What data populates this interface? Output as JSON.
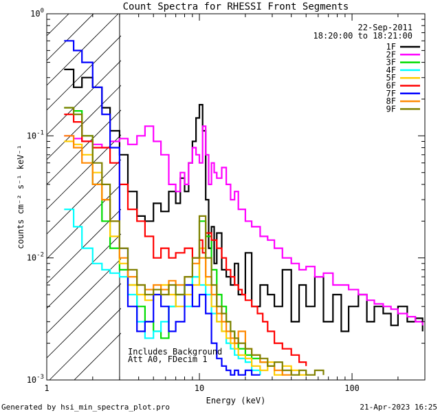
{
  "chart_data": {
    "type": "line",
    "title": "Count Spectra for RHESSI Front Segments",
    "xlabel": "Energy (keV)",
    "ylabel": "counts cm⁻² s⁻¹ keV⁻¹",
    "xscale": "log",
    "yscale": "log",
    "xlim": [
      1,
      300
    ],
    "ylim": [
      0.001,
      1
    ],
    "x_ticks": [
      {
        "value": 1,
        "label": "1"
      },
      {
        "value": 10,
        "label": "10"
      },
      {
        "value": 100,
        "label": "100"
      }
    ],
    "y_ticks": [
      {
        "value": 0.001,
        "base": "10",
        "exp": "-3"
      },
      {
        "value": 0.01,
        "base": "10",
        "exp": "-2"
      },
      {
        "value": 0.1,
        "base": "10",
        "exp": "-1"
      },
      {
        "value": 1,
        "base": "10",
        "exp": "0"
      }
    ],
    "date": "22-Sep-2011",
    "time_range": "18:20:00 to 18:21:00",
    "annotations": [
      "Includes Background",
      "Att A0, FDecim 1"
    ],
    "hatched_region_max_energy": 3,
    "legend_position": "top-right",
    "series": [
      {
        "name": "1F",
        "color": "#000000",
        "x": [
          1.3,
          1.5,
          1.7,
          2.0,
          2.3,
          2.6,
          3.0,
          3.4,
          3.9,
          4.4,
          5.0,
          5.6,
          6.3,
          7.0,
          7.5,
          8.0,
          8.5,
          9.0,
          9.5,
          10.0,
          10.5,
          11.0,
          11.5,
          12.0,
          12.5,
          13.0,
          14.0,
          15.0,
          16.0,
          17.0,
          18.0,
          20.0,
          22.0,
          25.0,
          28.0,
          31.0,
          35.0,
          40.0,
          45.0,
          50.0,
          57.0,
          65.0,
          75.0,
          85.0,
          95.0,
          110.0,
          125.0,
          140.0,
          160.0,
          180.0,
          200.0,
          230.0,
          260.0,
          290.0
        ],
        "y": [
          0.35,
          0.25,
          0.3,
          0.25,
          0.17,
          0.11,
          0.07,
          0.035,
          0.022,
          0.02,
          0.028,
          0.024,
          0.035,
          0.028,
          0.045,
          0.035,
          0.06,
          0.09,
          0.14,
          0.18,
          0.11,
          0.03,
          0.012,
          0.018,
          0.009,
          0.016,
          0.008,
          0.007,
          0.006,
          0.009,
          0.005,
          0.011,
          0.004,
          0.006,
          0.005,
          0.004,
          0.008,
          0.003,
          0.006,
          0.004,
          0.007,
          0.003,
          0.005,
          0.0025,
          0.004,
          0.005,
          0.003,
          0.004,
          0.0035,
          0.0028,
          0.004,
          0.003,
          0.0032,
          0.0025
        ]
      },
      {
        "name": "2F",
        "color": "#ff00ff",
        "x": [
          1.3,
          1.5,
          1.7,
          2.0,
          2.3,
          2.6,
          3.0,
          3.4,
          3.9,
          4.4,
          5.0,
          5.6,
          6.3,
          7.0,
          7.5,
          8.0,
          8.5,
          9.0,
          9.5,
          10.0,
          10.5,
          11.0,
          11.5,
          12.0,
          12.5,
          13.0,
          14.0,
          15.0,
          16.0,
          17.0,
          18.0,
          20.0,
          22.0,
          25.0,
          28.0,
          31.0,
          35.0,
          40.0,
          45.0,
          50.0,
          57.0,
          65.0,
          75.0,
          85.0,
          95.0,
          110.0,
          125.0,
          140.0,
          160.0,
          180.0,
          200.0,
          230.0,
          260.0,
          290.0
        ],
        "y": [
          0.1,
          0.095,
          0.09,
          0.085,
          0.08,
          0.09,
          0.095,
          0.085,
          0.1,
          0.12,
          0.09,
          0.07,
          0.04,
          0.035,
          0.05,
          0.04,
          0.06,
          0.08,
          0.07,
          0.06,
          0.12,
          0.07,
          0.04,
          0.06,
          0.05,
          0.045,
          0.055,
          0.04,
          0.03,
          0.035,
          0.025,
          0.02,
          0.018,
          0.015,
          0.014,
          0.012,
          0.01,
          0.009,
          0.008,
          0.0085,
          0.007,
          0.0075,
          0.006,
          0.006,
          0.0055,
          0.005,
          0.0045,
          0.0042,
          0.004,
          0.0038,
          0.0035,
          0.0033,
          0.003,
          0.0028
        ]
      },
      {
        "name": "3F",
        "color": "#00dd00",
        "x": [
          1.3,
          1.5,
          1.7,
          2.0,
          2.3,
          2.6,
          3.0,
          3.4,
          3.9,
          4.4,
          5.0,
          5.6,
          6.3,
          7.0,
          8.0,
          9.0,
          10.0,
          11.0,
          12.0,
          13.0,
          14.0,
          15.0,
          16.0,
          17.0,
          18.0,
          20.0,
          22.0,
          25.0,
          28.0,
          31.0
        ],
        "y": [
          0.17,
          0.16,
          0.1,
          0.04,
          0.02,
          0.012,
          0.008,
          0.006,
          0.004,
          0.003,
          0.0025,
          0.0022,
          0.004,
          0.005,
          0.006,
          0.007,
          0.02,
          0.015,
          0.008,
          0.005,
          0.004,
          0.003,
          0.0025,
          0.002,
          0.0018,
          0.0016,
          0.0015,
          0.0014,
          0.0013,
          0.0012
        ]
      },
      {
        "name": "4F",
        "color": "#00ffff",
        "x": [
          1.3,
          1.5,
          1.7,
          2.0,
          2.3,
          2.6,
          3.0,
          3.4,
          3.9,
          4.4,
          5.0,
          5.6,
          6.3,
          7.0,
          8.0,
          9.0,
          10.0,
          11.0,
          12.0,
          13.0,
          14.0,
          15.0,
          16.0,
          17.0,
          18.0,
          20.0,
          22.0,
          25.0
        ],
        "y": [
          0.025,
          0.018,
          0.012,
          0.009,
          0.008,
          0.0075,
          0.007,
          0.005,
          0.003,
          0.0022,
          0.0025,
          0.003,
          0.004,
          0.006,
          0.004,
          0.007,
          0.006,
          0.005,
          0.0035,
          0.003,
          0.0025,
          0.002,
          0.0018,
          0.0016,
          0.0015,
          0.0014,
          0.0012,
          0.0011
        ]
      },
      {
        "name": "5F",
        "color": "#ffcc00",
        "x": [
          1.3,
          1.5,
          1.7,
          2.0,
          2.3,
          2.6,
          3.0,
          3.4,
          3.9,
          4.4,
          5.0,
          5.6,
          6.3,
          7.0,
          8.0,
          9.0,
          10.0,
          11.0,
          12.0,
          13.0,
          14.0,
          15.0,
          16.0,
          17.0,
          18.0,
          20.0,
          22.0,
          25.0,
          28.0,
          31.0,
          35.0,
          40.0,
          45.0,
          50.0
        ],
        "y": [
          0.09,
          0.085,
          0.07,
          0.05,
          0.03,
          0.015,
          0.009,
          0.006,
          0.005,
          0.0045,
          0.005,
          0.006,
          0.005,
          0.004,
          0.005,
          0.006,
          0.012,
          0.006,
          0.004,
          0.003,
          0.0025,
          0.0022,
          0.002,
          0.0018,
          0.0016,
          0.0015,
          0.0013,
          0.0012,
          0.0014,
          0.0011,
          0.0013,
          0.0012,
          0.0011,
          0.0012
        ]
      },
      {
        "name": "6F",
        "color": "#ff0000",
        "x": [
          1.3,
          1.5,
          1.7,
          2.0,
          2.3,
          2.6,
          3.0,
          3.4,
          3.9,
          4.4,
          5.0,
          5.6,
          6.3,
          7.0,
          8.0,
          9.0,
          10.0,
          10.5,
          11.0,
          12.0,
          13.0,
          14.0,
          15.0,
          16.0,
          17.0,
          18.0,
          19.0,
          20.0,
          22.0,
          24.0,
          26.0,
          28.0,
          31.0,
          35.0,
          40.0,
          45.0,
          50.0
        ],
        "y": [
          0.15,
          0.13,
          0.09,
          0.08,
          0.08,
          0.06,
          0.04,
          0.025,
          0.02,
          0.015,
          0.01,
          0.012,
          0.01,
          0.011,
          0.012,
          0.01,
          0.014,
          0.011,
          0.016,
          0.014,
          0.012,
          0.01,
          0.008,
          0.007,
          0.006,
          0.0055,
          0.005,
          0.0045,
          0.004,
          0.0035,
          0.003,
          0.0025,
          0.002,
          0.0018,
          0.0016,
          0.0014,
          0.0013
        ]
      },
      {
        "name": "7F",
        "color": "#0000ff",
        "x": [
          1.3,
          1.5,
          1.7,
          2.0,
          2.3,
          2.6,
          3.0,
          3.4,
          3.9,
          4.4,
          5.0,
          5.6,
          6.3,
          7.0,
          8.0,
          9.0,
          10.0,
          11.0,
          12.0,
          13.0,
          14.0,
          15.0,
          16.0,
          17.0,
          18.0,
          20.0,
          22.0,
          25.0
        ],
        "y": [
          0.6,
          0.5,
          0.4,
          0.25,
          0.15,
          0.08,
          0.012,
          0.004,
          0.0025,
          0.003,
          0.005,
          0.004,
          0.0025,
          0.003,
          0.006,
          0.004,
          0.005,
          0.0035,
          0.002,
          0.0015,
          0.0013,
          0.0012,
          0.0011,
          0.0012,
          0.0011,
          0.0012,
          0.0011,
          0.0011
        ]
      },
      {
        "name": "8F",
        "color": "#ff8800",
        "x": [
          1.3,
          1.5,
          1.7,
          2.0,
          2.3,
          2.6,
          3.0,
          3.4,
          3.9,
          4.4,
          5.0,
          5.6,
          6.3,
          7.0,
          8.0,
          9.0,
          10.0,
          11.0,
          12.0,
          13.0,
          14.0,
          15.0,
          16.0,
          17.0,
          18.0,
          20.0,
          22.0,
          25.0,
          28.0,
          31.0,
          35.0,
          40.0
        ],
        "y": [
          0.1,
          0.08,
          0.06,
          0.04,
          0.03,
          0.02,
          0.01,
          0.007,
          0.006,
          0.0055,
          0.006,
          0.0055,
          0.0065,
          0.006,
          0.007,
          0.009,
          0.01,
          0.007,
          0.005,
          0.0035,
          0.003,
          0.0025,
          0.0022,
          0.002,
          0.0025,
          0.0018,
          0.0016,
          0.0014,
          0.0013,
          0.0012,
          0.0011,
          0.0012
        ]
      },
      {
        "name": "9F",
        "color": "#808000",
        "x": [
          1.3,
          1.5,
          1.7,
          2.0,
          2.3,
          2.6,
          3.0,
          3.4,
          3.9,
          4.4,
          5.0,
          5.6,
          6.3,
          7.0,
          8.0,
          9.0,
          10.0,
          11.0,
          12.0,
          13.0,
          14.0,
          15.0,
          16.0,
          17.0,
          18.0,
          20.0,
          22.0,
          25.0,
          28.0,
          31.0,
          35.0,
          40.0,
          45.0,
          50.0,
          57.0,
          65.0
        ],
        "y": [
          0.17,
          0.15,
          0.1,
          0.06,
          0.04,
          0.02,
          0.012,
          0.008,
          0.006,
          0.005,
          0.0055,
          0.005,
          0.006,
          0.005,
          0.007,
          0.01,
          0.022,
          0.01,
          0.006,
          0.004,
          0.0035,
          0.003,
          0.0025,
          0.0022,
          0.002,
          0.0018,
          0.0016,
          0.0015,
          0.0013,
          0.0014,
          0.0012,
          0.0011,
          0.0012,
          0.0011,
          0.0012,
          0.0011
        ]
      }
    ]
  },
  "footer": {
    "generated_by": "Generated by hsi_min_spectra_plot.pro",
    "timestamp": "21-Apr-2023 16:25"
  }
}
